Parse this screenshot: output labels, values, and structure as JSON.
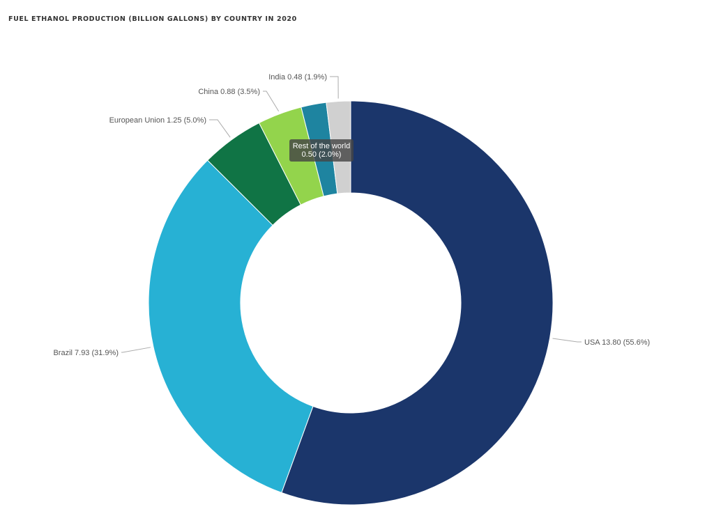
{
  "chart_data": {
    "type": "pie",
    "title": "FUEL ETHANOL PRODUCTION (BILLION GALLONS) BY COUNTRY IN 2020",
    "donut": true,
    "slices": [
      {
        "label": "USA",
        "value": 13.8,
        "percent": "55.6%",
        "color": "#1b366b"
      },
      {
        "label": "Brazil",
        "value": 7.93,
        "percent": "31.9%",
        "color": "#27b1d4"
      },
      {
        "label": "European Union",
        "value": 1.25,
        "percent": "5.0%",
        "color": "#107445"
      },
      {
        "label": "China",
        "value": 0.88,
        "percent": "3.5%",
        "color": "#93d44c"
      },
      {
        "label": "Rest of the world",
        "value": 0.5,
        "percent": "2.0%",
        "color": "#1e84a0"
      },
      {
        "label": "India",
        "value": 0.48,
        "percent": "1.9%",
        "color": "#d0d0d0"
      }
    ],
    "tooltip": {
      "slice": "Rest of the world",
      "line1": "Rest of the world",
      "line2": "0.50 (2.0%)"
    }
  }
}
